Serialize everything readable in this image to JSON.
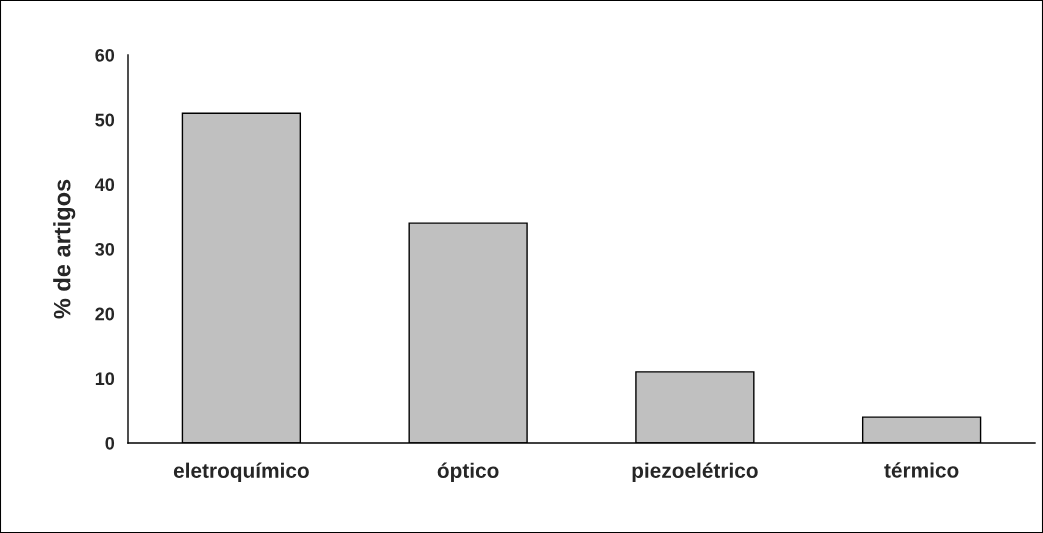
{
  "chart_data": {
    "type": "bar",
    "ylabel": "% de artigos",
    "categories": [
      "eletroquímico",
      "óptico",
      "piezoelétrico",
      "térmico"
    ],
    "values": [
      51,
      34,
      11,
      4
    ],
    "color": "#c0c0c0",
    "ylim": [
      0,
      60
    ],
    "yticks": [
      0,
      10,
      20,
      30,
      40,
      50,
      60
    ],
    "grid": false,
    "legend": false
  }
}
